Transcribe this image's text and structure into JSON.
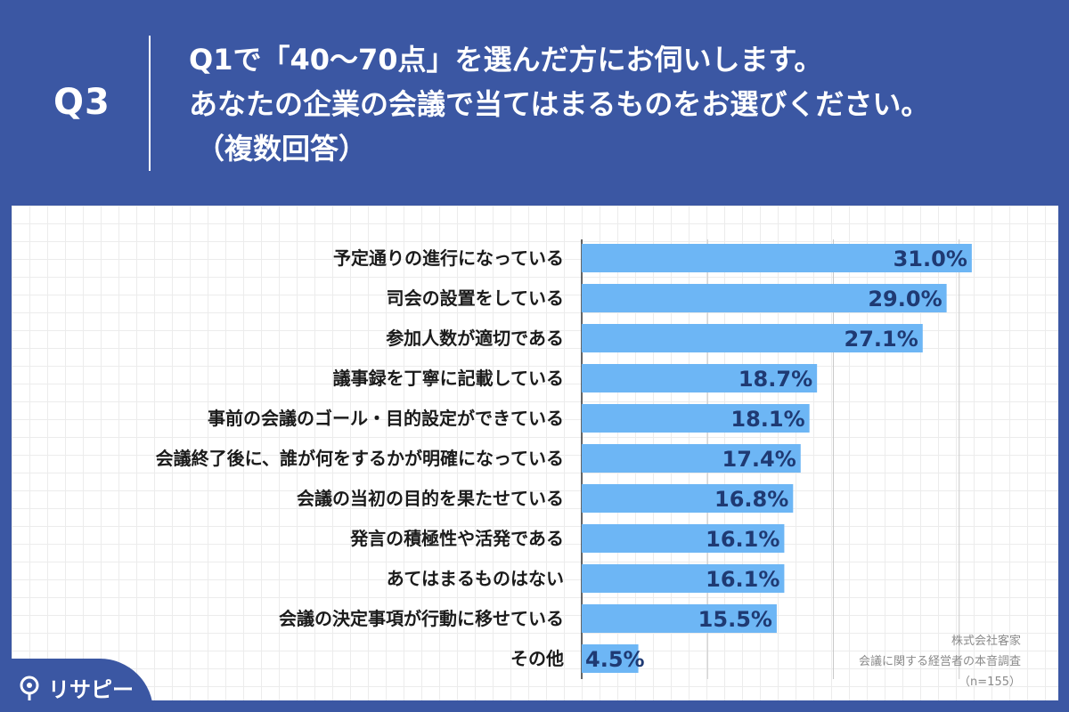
{
  "question": {
    "number": "Q3",
    "lines": [
      "Q1で「40〜70点」を選んだ方にお伺いします。",
      "あなたの企業の会議で当てはまるものをお選びください。",
      "（複数回答）"
    ]
  },
  "chart_data": {
    "type": "bar",
    "orientation": "horizontal",
    "categories": [
      "予定通りの進行になっている",
      "司会の設置をしている",
      "参加人数が適切である",
      "議事録を丁寧に記載している",
      "事前の会議のゴール・目的設定ができている",
      "会議終了後に、誰が何をするかが明確になっている",
      "会議の当初の目的を果たせている",
      "発言の積極性や活発である",
      "あてはまるものはない",
      "会議の決定事項が行動に移せている",
      "その他"
    ],
    "values": [
      31.0,
      29.0,
      27.1,
      18.7,
      18.1,
      17.4,
      16.8,
      16.1,
      16.1,
      15.5,
      4.5
    ],
    "value_labels": [
      "31.0%",
      "29.0%",
      "27.1%",
      "18.7%",
      "18.1%",
      "17.4%",
      "16.8%",
      "16.1%",
      "16.1%",
      "15.5%",
      "4.5%"
    ],
    "xlim": [
      0,
      40
    ],
    "gridlines": [
      0,
      10,
      20,
      30
    ],
    "bar_color": "#6db6f5",
    "label_color": "#1f3a73"
  },
  "source": {
    "company": "株式会社客家",
    "survey": "会議に関する経営者の本音調査",
    "sample": "（n=155）"
  },
  "logo": {
    "text": "リサピー",
    "icon": "pin-icon"
  },
  "colors": {
    "background": "#3b57a3",
    "panel": "#ffffff"
  }
}
